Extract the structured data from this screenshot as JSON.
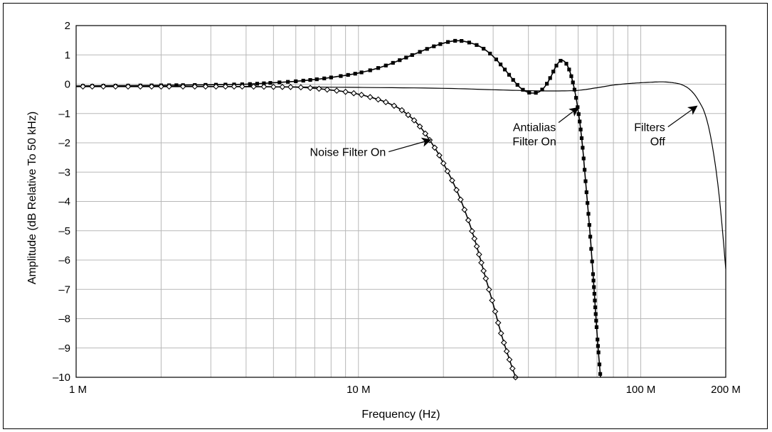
{
  "chart_data": {
    "type": "line",
    "title": "",
    "xlabel": "Frequency (Hz)",
    "ylabel": "Amplitude (dB Relative To 50 kHz)",
    "xscale": "log",
    "xlim": [
      1000000,
      200000000
    ],
    "ylim": [
      -10,
      2
    ],
    "grid": true,
    "legend": "none",
    "x_ticks": [
      {
        "value": 1000000,
        "label": "1 M"
      },
      {
        "value": 10000000,
        "label": "10 M"
      },
      {
        "value": 100000000,
        "label": "100 M"
      },
      {
        "value": 200000000,
        "label": "200 M"
      }
    ],
    "y_ticks": [
      {
        "value": 2,
        "label": "2"
      },
      {
        "value": 1,
        "label": "1"
      },
      {
        "value": 0,
        "label": "0"
      },
      {
        "value": -1,
        "label": "–1"
      },
      {
        "value": -2,
        "label": "–2"
      },
      {
        "value": -3,
        "label": "–3"
      },
      {
        "value": -4,
        "label": "–4"
      },
      {
        "value": -5,
        "label": "–5"
      },
      {
        "value": -6,
        "label": "–6"
      },
      {
        "value": -7,
        "label": "–7"
      },
      {
        "value": -8,
        "label": "–8"
      },
      {
        "value": -9,
        "label": "–9"
      },
      {
        "value": -10,
        "label": "–10"
      }
    ],
    "series": [
      {
        "key": "filters-off",
        "marker": "none",
        "color": "#000000",
        "points": [
          [
            1000000,
            -0.08
          ],
          [
            2000000,
            -0.08
          ],
          [
            5000000,
            -0.09
          ],
          [
            10000000,
            -0.11
          ],
          [
            20000000,
            -0.14
          ],
          [
            30000000,
            -0.19
          ],
          [
            40000000,
            -0.22
          ],
          [
            50000000,
            -0.23
          ],
          [
            60000000,
            -0.21
          ],
          [
            70000000,
            -0.12
          ],
          [
            80000000,
            -0.03
          ],
          [
            90000000,
            0.02
          ],
          [
            100000000,
            0.05
          ],
          [
            110000000,
            0.07
          ],
          [
            120000000,
            0.08
          ],
          [
            130000000,
            0.05
          ],
          [
            140000000,
            -0.02
          ],
          [
            150000000,
            -0.2
          ],
          [
            160000000,
            -0.55
          ],
          [
            170000000,
            -1.1
          ],
          [
            180000000,
            -2.2
          ],
          [
            190000000,
            -3.9
          ],
          [
            200000000,
            -6.3
          ]
        ]
      },
      {
        "key": "antialias-filter-on",
        "marker": "square",
        "color": "#000000",
        "points": [
          [
            1000000,
            -0.06
          ],
          [
            2000000,
            -0.04
          ],
          [
            3000000,
            -0.02
          ],
          [
            4000000,
            0.0
          ],
          [
            5000000,
            0.05
          ],
          [
            6000000,
            0.1
          ],
          [
            7000000,
            0.16
          ],
          [
            8000000,
            0.23
          ],
          [
            10000000,
            0.38
          ],
          [
            12000000,
            0.58
          ],
          [
            14000000,
            0.82
          ],
          [
            16000000,
            1.05
          ],
          [
            18000000,
            1.25
          ],
          [
            20000000,
            1.4
          ],
          [
            22000000,
            1.48
          ],
          [
            24000000,
            1.45
          ],
          [
            27000000,
            1.28
          ],
          [
            30000000,
            0.95
          ],
          [
            33000000,
            0.5
          ],
          [
            36000000,
            0.05
          ],
          [
            38000000,
            -0.17
          ],
          [
            40000000,
            -0.28
          ],
          [
            42000000,
            -0.3
          ],
          [
            44000000,
            -0.24
          ],
          [
            46000000,
            -0.05
          ],
          [
            48000000,
            0.25
          ],
          [
            50000000,
            0.6
          ],
          [
            52000000,
            0.8
          ],
          [
            54000000,
            0.75
          ],
          [
            56000000,
            0.45
          ],
          [
            58000000,
            -0.1
          ],
          [
            60000000,
            -0.9
          ],
          [
            62000000,
            -2.0
          ],
          [
            64000000,
            -3.5
          ],
          [
            66000000,
            -5.0
          ],
          [
            68000000,
            -6.7
          ],
          [
            70000000,
            -8.5
          ],
          [
            72000000,
            -10.0
          ]
        ]
      },
      {
        "key": "noise-filter-on",
        "marker": "diamond",
        "color": "#000000",
        "points": [
          [
            1000000,
            -0.08
          ],
          [
            2000000,
            -0.08
          ],
          [
            3000000,
            -0.08
          ],
          [
            4000000,
            -0.08
          ],
          [
            5000000,
            -0.09
          ],
          [
            6000000,
            -0.1
          ],
          [
            7000000,
            -0.14
          ],
          [
            8000000,
            -0.2
          ],
          [
            9000000,
            -0.26
          ],
          [
            10000000,
            -0.34
          ],
          [
            11000000,
            -0.44
          ],
          [
            12000000,
            -0.55
          ],
          [
            13000000,
            -0.68
          ],
          [
            14000000,
            -0.84
          ],
          [
            15000000,
            -1.05
          ],
          [
            16000000,
            -1.3
          ],
          [
            17000000,
            -1.6
          ],
          [
            18000000,
            -1.95
          ],
          [
            19000000,
            -2.3
          ],
          [
            20000000,
            -2.7
          ],
          [
            22000000,
            -3.5
          ],
          [
            24000000,
            -4.4
          ],
          [
            26000000,
            -5.4
          ],
          [
            28000000,
            -6.5
          ],
          [
            30000000,
            -7.5
          ],
          [
            32000000,
            -8.5
          ],
          [
            34000000,
            -9.3
          ],
          [
            36000000,
            -10.0
          ]
        ]
      }
    ],
    "annotations": [
      {
        "key": "noise",
        "lines": [
          "Noise Filter On"
        ],
        "at": [
          12500000,
          -2.45
        ],
        "anchor": "end",
        "arrow_to": [
          18000000,
          -1.9
        ]
      },
      {
        "key": "antialias",
        "lines": [
          "Antialias",
          "Filter On"
        ],
        "at": [
          42000000,
          -1.6
        ],
        "anchor": "middle",
        "arrow_to": [
          60000000,
          -0.8
        ]
      },
      {
        "key": "filters-off",
        "lines": [
          "Filters",
          "Off"
        ],
        "at": [
          122000000,
          -1.6
        ],
        "anchor": "end",
        "arrow_to": [
          158000000,
          -0.75
        ]
      }
    ]
  }
}
